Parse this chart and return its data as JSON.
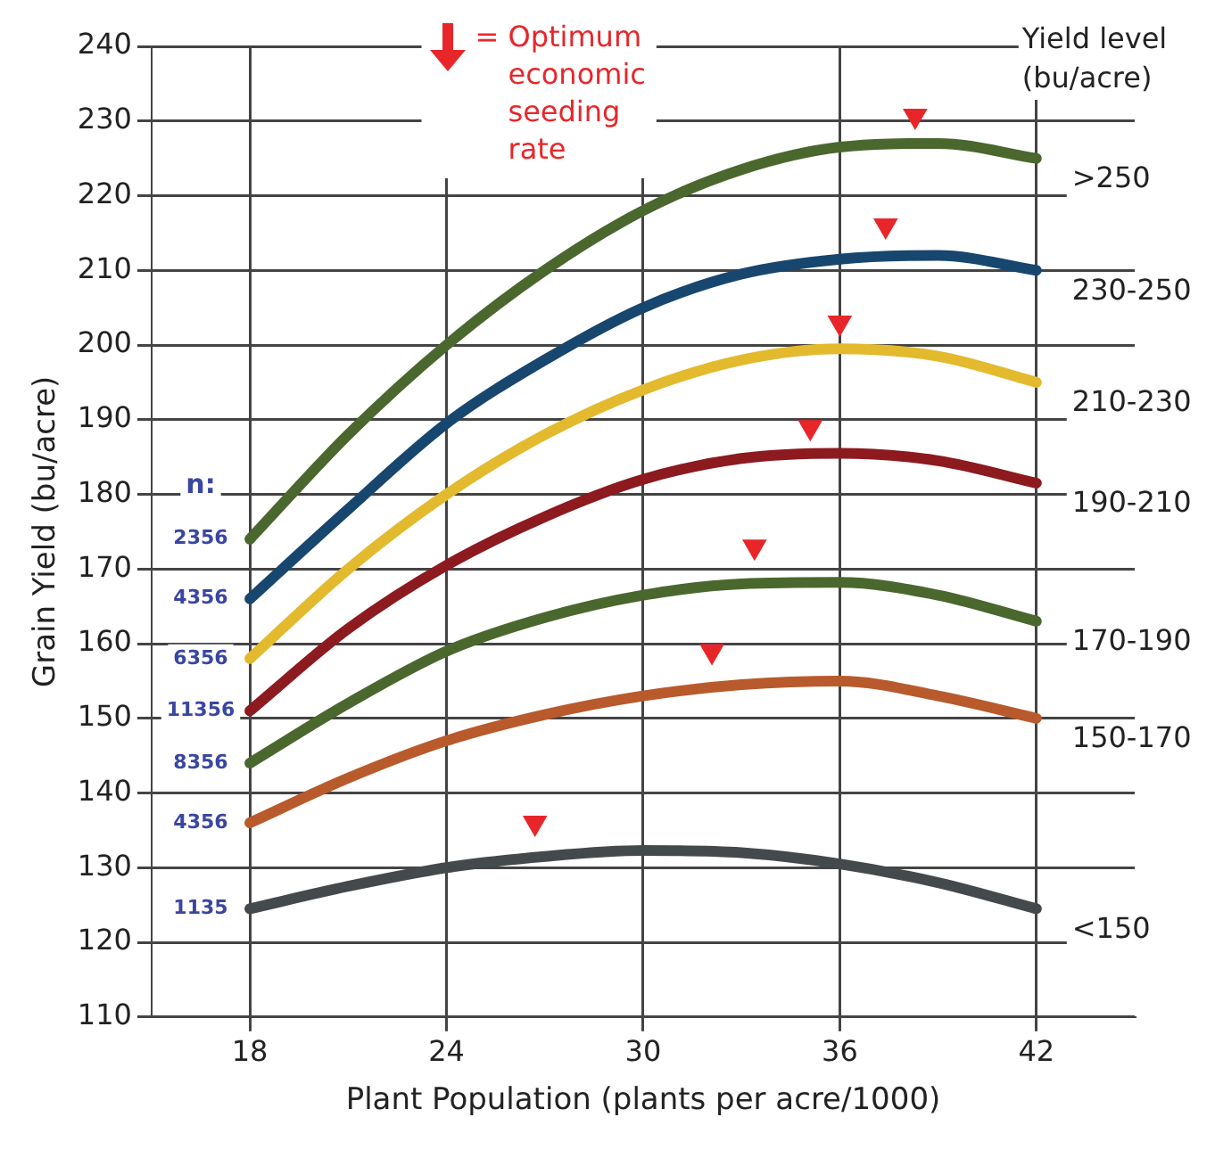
{
  "chart_data": {
    "type": "line",
    "xlabel": "Plant Population (plants per acre/1000)",
    "ylabel": "Grain Yield (bu/acre)",
    "legend_title": "Yield level (bu/acre)",
    "x": [
      18,
      21,
      24,
      27,
      30,
      33,
      36,
      39,
      42
    ],
    "xlim": [
      15,
      45
    ],
    "xticks": [
      18,
      24,
      30,
      36,
      42
    ],
    "ylim": [
      110,
      240
    ],
    "yticks": [
      110,
      120,
      130,
      140,
      150,
      160,
      170,
      180,
      190,
      200,
      210,
      220,
      230,
      240
    ],
    "grid": true,
    "legend": "top",
    "line_style": "solid",
    "annotations": [
      "n:",
      "2356",
      "4356",
      "6356",
      "11356",
      "8356",
      "4356",
      "1135"
    ],
    "series": [
      {
        "name": ">250",
        "color": "#4a672e",
        "values": [
          174,
          188,
          200,
          210,
          218,
          223.5,
          226.5,
          227,
          225
        ]
      },
      {
        "name": "230-250",
        "color": "#17466e",
        "values": [
          166,
          178,
          189.5,
          198,
          205,
          209.5,
          211.5,
          212,
          210
        ]
      },
      {
        "name": "210-230",
        "color": "#e3b92e",
        "values": [
          158,
          170,
          180,
          188,
          194,
          198,
          199.5,
          198.5,
          195
        ]
      },
      {
        "name": "190-210",
        "color": "#8c1a1f",
        "values": [
          151,
          162,
          170.5,
          177,
          182,
          184.8,
          185.5,
          184.5,
          181.5
        ]
      },
      {
        "name": "170-190",
        "color": "#4a672e",
        "values": [
          144,
          152,
          159,
          163.5,
          166.5,
          168,
          168.2,
          166.5,
          163
        ]
      },
      {
        "name": "150-170",
        "color": "#b85a2c",
        "values": [
          136,
          142,
          147,
          150.5,
          153,
          154.5,
          155,
          153,
          150
        ]
      },
      {
        "name": "<150",
        "color": "#44494b",
        "values": [
          124.5,
          127.5,
          130,
          131.5,
          132.3,
          132,
          130.5,
          128,
          124.5
        ]
      },
      {
        "name": "= Optimum economic seeding rate",
        "type": "scatter",
        "color": "#e8262a",
        "x": [
          38.3,
          37.4,
          36,
          35.1,
          33.4,
          32.1,
          26.7
        ],
        "values": [
          230.7,
          216,
          203,
          189,
          173,
          159,
          136
        ]
      }
    ]
  }
}
